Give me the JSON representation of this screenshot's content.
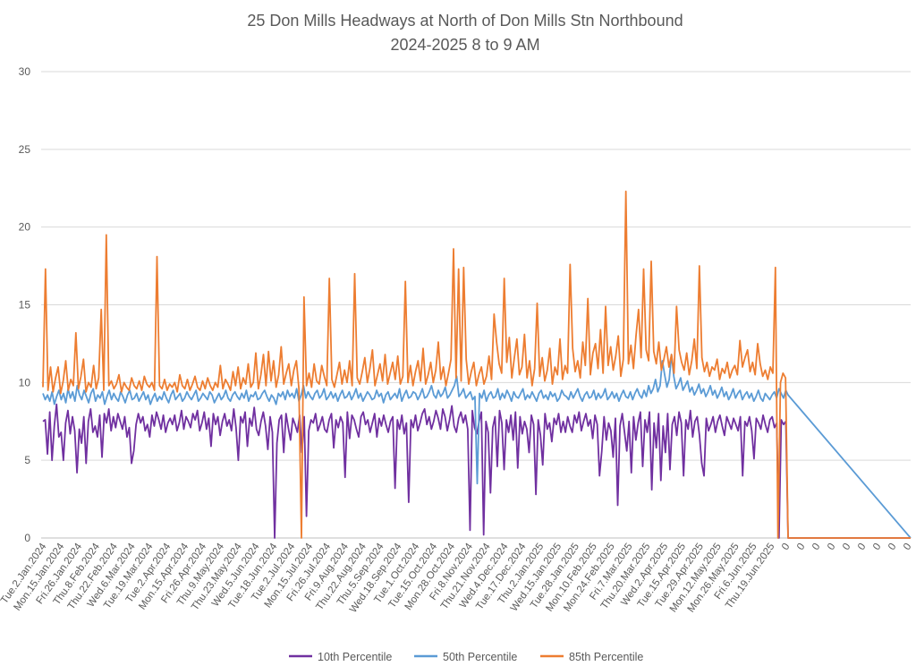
{
  "chart_data": {
    "type": "line",
    "title": "25 Don Mills Headways at North of Don Mills Stn Northbound",
    "subtitle": "2024-2025 8 to 9 AM",
    "xlabel": "",
    "ylabel": "",
    "ylim": [
      0,
      30
    ],
    "yticks": [
      0,
      5,
      10,
      15,
      20,
      25,
      30
    ],
    "grid": true,
    "legend_position": "bottom",
    "x_tick_labels": [
      "Tue.2.Jan.2024",
      "Mon.15.Jan.2024",
      "Fri.26.Jan.2024",
      "Thu.8.Feb.2024",
      "Thu.22.Feb.2024",
      "Wed.6.Mar.2024",
      "Tue.19.Mar.2024",
      "Tue.2.Apr.2024",
      "Mon.15.Apr.2024",
      "Fri.26.Apr.2024",
      "Thu.9.May.2024",
      "Thu.23.May.2024",
      "Wed.5.Jun.2024",
      "Tue.18.Jun.2024",
      "Tue.2.Jul.2024",
      "Mon.15.Jul.2024",
      "Fri.26.Jul.2024",
      "Fri.9.Aug.2024",
      "Thu.22.Aug.2024",
      "Thu.5.Sep.2024",
      "Wed.18.Sep.2024",
      "Tue.1.Oct.2024",
      "Tue.15.Oct.2024",
      "Mon.28.Oct.2024",
      "Fri.8.Nov.2024",
      "Thu.21.Nov.2024",
      "Wed.4.Dec.2024",
      "Tue.17.Dec.2024",
      "Thu.2.Jan.2025",
      "Wed.15.Jan.2025",
      "Tue.28.Jan.2025",
      "Mon.10.Feb.2025",
      "Mon.24.Feb.2025",
      "Fri.7.Mar.2025",
      "Thu.20.Mar.2025",
      "Wed.2.Apr.2025",
      "Tue.15.Apr.2025",
      "Tue.29.Apr.2025",
      "Mon.12.May.2025",
      "Mon.26.May.2025",
      "Fri.6.Jun.2025",
      "Thu.19.Jun.2025",
      "0",
      "0",
      "0",
      "0",
      "0",
      "0",
      "0",
      "0",
      "0"
    ],
    "series": [
      {
        "name": "10th Percentile",
        "color": "#7030A0",
        "values": [
          7.5,
          7.6,
          5.4,
          8.1,
          5.0,
          7.2,
          8.6,
          6.5,
          6.8,
          5.0,
          7.4,
          8.2,
          6.7,
          7.8,
          6.9,
          4.2,
          7.0,
          6.1,
          7.8,
          4.8,
          7.5,
          8.3,
          6.8,
          7.2,
          6.5,
          7.9,
          5.2,
          8.0,
          7.4,
          8.3,
          6.9,
          7.8,
          7.1,
          8.0,
          7.5,
          7.0,
          7.8,
          6.5,
          7.1,
          4.8,
          5.6,
          7.3,
          8.0,
          7.4,
          7.8,
          6.9,
          7.3,
          6.5,
          7.9,
          7.2,
          8.1,
          7.6,
          7.0,
          7.9,
          6.8,
          7.4,
          7.7,
          7.3,
          7.9,
          6.9,
          7.4,
          8.2,
          7.0,
          7.8,
          7.5,
          7.1,
          8.0,
          7.6,
          8.2,
          6.9,
          7.4,
          8.1,
          7.0,
          7.7,
          5.9,
          8.0,
          7.3,
          7.8,
          6.6,
          7.5,
          8.0,
          7.2,
          7.6,
          6.9,
          8.3,
          7.1,
          5.0,
          7.8,
          7.4,
          8.1,
          5.9,
          7.7,
          7.2,
          8.4,
          7.0,
          6.6,
          7.5,
          8.1,
          7.2,
          5.7,
          7.8,
          6.8,
          0.0,
          6.1,
          7.6,
          7.9,
          5.5,
          8.0,
          7.1,
          6.3,
          7.7,
          7.3,
          6.8,
          7.9,
          5.5,
          7.8,
          1.4,
          6.9,
          7.6,
          7.4,
          8.0,
          6.9,
          7.3,
          7.8,
          7.0,
          6.8,
          7.6,
          8.0,
          5.8,
          7.6,
          7.1,
          7.8,
          7.4,
          3.9,
          8.1,
          6.4,
          7.9,
          7.6,
          7.0,
          6.5,
          7.8,
          8.1,
          7.3,
          7.6,
          6.8,
          7.4,
          8.0,
          6.5,
          7.7,
          7.2,
          7.9,
          7.3,
          6.8,
          7.5,
          7.8,
          3.2,
          7.6,
          7.0,
          7.9,
          6.7,
          7.4,
          2.3,
          7.6,
          7.1,
          7.9,
          6.9,
          7.4,
          8.0,
          8.3,
          7.3,
          7.8,
          7.0,
          7.5,
          8.2,
          7.7,
          7.0,
          8.3,
          7.8,
          6.9,
          7.6,
          8.5,
          7.2,
          6.8,
          7.7,
          8.1,
          7.4,
          7.9,
          7.0,
          0.5,
          8.2,
          7.1,
          6.7,
          7.5,
          8.1,
          0.2,
          7.5,
          6.8,
          2.9,
          7.1,
          7.8,
          4.6,
          8.2,
          7.4,
          4.4,
          7.6,
          6.8,
          7.9,
          6.3,
          8.1,
          4.5,
          7.8,
          6.7,
          7.5,
          7.0,
          5.5,
          7.9,
          7.3,
          2.8,
          7.6,
          6.6,
          4.7,
          8.0,
          7.0,
          7.4,
          6.2,
          7.7,
          7.3,
          8.0,
          6.8,
          7.5,
          6.8,
          7.8,
          7.2,
          6.8,
          7.9,
          7.4,
          8.1,
          6.9,
          7.5,
          8.0,
          7.2,
          7.6,
          6.4,
          7.9,
          7.3,
          4.0,
          5.6,
          7.8,
          6.3,
          7.4,
          6.9,
          5.2,
          7.7,
          2.1,
          7.2,
          8.0,
          6.8,
          5.6,
          7.5,
          4.2,
          7.8,
          6.3,
          7.4,
          8.1,
          4.6,
          7.6,
          6.8,
          8.1,
          3.1,
          7.4,
          5.8,
          8.0,
          3.7,
          7.2,
          5.5,
          8.0,
          4.4,
          7.3,
          7.8,
          6.6,
          8.1,
          7.4,
          4.0,
          7.6,
          7.0,
          8.2,
          6.5,
          7.5,
          7.8,
          6.6,
          4.8,
          4.0,
          7.7,
          6.9,
          7.3,
          7.8,
          6.8,
          7.5,
          7.9,
          7.2,
          6.6,
          7.8,
          7.4,
          7.0,
          7.7,
          7.3,
          6.9,
          7.8,
          4.0,
          7.5,
          7.2,
          7.8,
          6.9,
          5.1,
          7.7,
          7.4,
          7.0,
          7.9,
          7.3,
          6.8,
          7.6,
          7.8,
          7.1,
          7.4,
          0.0,
          7.6,
          7.3,
          7.5,
          0.0
        ]
      },
      {
        "name": "50th Percentile",
        "color": "#5B9BD5",
        "values": [
          9.3,
          8.9,
          9.2,
          8.8,
          9.4,
          8.6,
          9.1,
          9.5,
          8.9,
          9.3,
          8.7,
          9.6,
          9.0,
          9.4,
          8.8,
          9.8,
          9.2,
          8.9,
          9.5,
          9.1,
          8.7,
          9.3,
          9.6,
          8.8,
          9.2,
          9.0,
          9.4,
          8.6,
          9.1,
          9.5,
          8.9,
          9.3,
          9.0,
          8.8,
          9.4,
          9.1,
          8.7,
          9.2,
          9.5,
          8.9,
          9.0,
          9.3,
          8.8,
          9.1,
          9.4,
          8.9,
          9.2,
          8.6,
          9.0,
          9.3,
          8.8,
          9.1,
          8.9,
          9.4,
          9.0,
          8.7,
          9.2,
          9.5,
          8.9,
          9.1,
          9.3,
          8.8,
          9.0,
          9.4,
          9.1,
          8.9,
          9.2,
          9.5,
          8.8,
          9.0,
          9.3,
          9.1,
          8.9,
          9.4,
          9.2,
          8.7,
          9.0,
          9.3,
          8.9,
          9.1,
          9.5,
          9.0,
          8.8,
          9.2,
          9.4,
          9.1,
          8.9,
          9.3,
          9.0,
          9.5,
          8.8,
          9.2,
          9.1,
          9.4,
          8.9,
          9.0,
          9.3,
          9.5,
          9.1,
          8.8,
          9.2,
          9.0,
          8.6,
          9.3,
          9.1,
          9.4,
          8.9,
          9.5,
          9.1,
          9.3,
          9.0,
          9.6,
          8.8,
          9.2,
          9.8,
          9.0,
          9.4,
          9.1,
          8.9,
          9.3,
          9.5,
          9.0,
          9.2,
          9.6,
          8.9,
          9.1,
          9.4,
          9.0,
          9.3,
          8.8,
          9.2,
          9.5,
          9.0,
          9.1,
          9.4,
          8.9,
          9.2,
          9.6,
          9.0,
          9.3,
          8.8,
          9.1,
          9.4,
          9.2,
          8.9,
          9.0,
          9.5,
          9.1,
          9.3,
          8.7,
          9.2,
          9.4,
          8.9,
          9.1,
          9.3,
          9.0,
          9.6,
          8.8,
          9.2,
          9.5,
          9.0,
          9.1,
          9.4,
          9.3,
          8.9,
          9.2,
          9.6,
          9.0,
          9.1,
          9.4,
          9.8,
          9.2,
          9.0,
          9.5,
          9.1,
          9.3,
          9.7,
          9.0,
          9.2,
          9.5,
          9.8,
          10.4,
          9.1,
          9.3,
          9.6,
          9.0,
          9.2,
          9.4,
          8.9,
          9.1,
          3.5,
          9.3,
          9.0,
          9.5,
          8.8,
          9.2,
          9.4,
          9.0,
          9.1,
          9.6,
          8.9,
          9.3,
          9.0,
          9.5,
          9.2,
          8.8,
          9.4,
          9.1,
          9.0,
          9.3,
          9.6,
          8.9,
          9.2,
          9.0,
          9.4,
          9.1,
          8.8,
          9.3,
          9.5,
          9.0,
          9.2,
          8.9,
          9.4,
          9.1,
          9.3,
          8.8,
          9.0,
          9.5,
          9.2,
          9.1,
          8.9,
          9.4,
          9.0,
          9.3,
          9.6,
          9.1,
          8.8,
          9.2,
          9.4,
          9.0,
          9.1,
          9.5,
          8.9,
          9.3,
          9.0,
          9.2,
          9.6,
          8.9,
          9.1,
          9.4,
          9.0,
          9.3,
          8.8,
          9.2,
          9.5,
          9.1,
          9.0,
          9.4,
          8.9,
          9.3,
          9.6,
          9.2,
          9.0,
          9.5,
          9.1,
          9.8,
          9.3,
          9.6,
          10.2,
          9.4,
          9.8,
          11.4,
          10.5,
          9.7,
          10.2,
          11.8,
          10.4,
          9.6,
          9.9,
          10.3,
          9.5,
          9.8,
          10.1,
          9.4,
          9.7,
          9.2,
          9.5,
          9.9,
          9.3,
          9.6,
          9.1,
          9.4,
          9.8,
          9.2,
          9.5,
          9.0,
          9.3,
          9.7,
          9.1,
          9.4,
          8.9,
          9.2,
          9.6,
          9.0,
          9.3,
          9.5,
          8.9,
          9.2,
          9.4,
          9.0,
          9.3,
          8.8,
          9.1,
          9.5,
          9.0,
          8.8,
          9.3,
          9.1,
          8.9,
          9.2,
          9.4,
          9.0,
          9.6,
          9.3,
          9.0,
          9.5,
          9.2
        ]
      },
      {
        "name": "85th Percentile",
        "color": "#ED7D31",
        "values": [
          9.7,
          17.3,
          9.5,
          11.0,
          9.4,
          10.3,
          11.0,
          9.3,
          10.1,
          11.4,
          9.5,
          10.2,
          9.8,
          13.2,
          9.6,
          10.4,
          11.5,
          9.4,
          10.0,
          9.7,
          11.1,
          9.6,
          10.3,
          14.7,
          9.5,
          19.5,
          9.8,
          10.1,
          9.6,
          9.9,
          10.5,
          9.4,
          10.0,
          9.7,
          9.5,
          10.3,
          9.8,
          9.6,
          10.1,
          9.5,
          10.4,
          9.9,
          9.7,
          10.0,
          9.5,
          18.1,
          9.8,
          9.6,
          10.2,
          9.5,
          9.9,
          9.7,
          10.0,
          9.4,
          10.5,
          9.8,
          9.6,
          10.2,
          9.5,
          9.9,
          10.4,
          9.7,
          9.5,
          10.1,
          9.6,
          10.3,
          9.8,
          9.5,
          10.0,
          9.7,
          11.1,
          9.6,
          10.2,
          9.9,
          9.5,
          10.7,
          9.8,
          11.0,
          9.6,
          10.3,
          9.9,
          11.2,
          9.7,
          10.0,
          11.9,
          9.6,
          10.5,
          11.8,
          9.8,
          12.0,
          10.1,
          11.4,
          9.7,
          10.5,
          12.3,
          9.9,
          10.6,
          11.2,
          9.8,
          10.8,
          11.4,
          9.6,
          0.0,
          15.5,
          9.8,
          10.6,
          9.7,
          11.2,
          10.1,
          9.9,
          11.1,
          10.4,
          9.8,
          16.7,
          10.2,
          9.7,
          10.5,
          11.3,
          9.9,
          10.8,
          10.0,
          11.4,
          9.8,
          17.0,
          10.3,
          9.9,
          10.7,
          11.6,
          10.0,
          10.9,
          12.1,
          9.8,
          10.5,
          11.2,
          10.1,
          11.8,
          9.9,
          10.6,
          11.3,
          10.2,
          11.7,
          9.9,
          10.4,
          16.5,
          10.0,
          11.1,
          9.8,
          10.7,
          11.4,
          10.1,
          12.2,
          9.9,
          10.5,
          11.3,
          10.0,
          10.8,
          12.6,
          10.2,
          11.0,
          9.8,
          10.6,
          11.5,
          18.6,
          10.3,
          17.3,
          10.1,
          17.4,
          11.5,
          9.9,
          10.7,
          11.3,
          9.8,
          10.5,
          11.0,
          9.9,
          10.4,
          11.7,
          10.2,
          14.4,
          12.6,
          11.2,
          10.6,
          16.7,
          11.3,
          12.9,
          10.3,
          11.6,
          12.8,
          10.5,
          11.0,
          13.1,
          10.3,
          11.4,
          9.8,
          10.9,
          15.1,
          10.4,
          11.6,
          10.1,
          10.8,
          12.2,
          9.9,
          11.0,
          10.5,
          12.8,
          10.2,
          11.1,
          10.6,
          17.6,
          12.2,
          10.7,
          11.4,
          10.3,
          12.6,
          11.1,
          15.4,
          10.5,
          11.9,
          12.5,
          10.9,
          13.4,
          10.6,
          14.9,
          11.1,
          12.3,
          10.8,
          11.7,
          13.0,
          10.4,
          11.5,
          22.3,
          11.2,
          12.4,
          10.9,
          13.0,
          14.7,
          11.6,
          17.3,
          12.1,
          11.4,
          17.8,
          12.0,
          11.2,
          12.6,
          10.8,
          11.5,
          12.3,
          11.0,
          11.8,
          10.6,
          14.9,
          12.1,
          11.3,
          10.8,
          11.9,
          10.5,
          11.4,
          12.8,
          10.9,
          17.5,
          11.6,
          10.7,
          11.3,
          10.4,
          11.0,
          10.8,
          11.5,
          10.2,
          10.9,
          10.6,
          11.3,
          10.3,
          10.8,
          11.1,
          10.5,
          12.7,
          11.0,
          11.6,
          12.1,
          10.7,
          11.3,
          10.5,
          12.5,
          11.2,
          10.4,
          10.8,
          10.2,
          11.0,
          10.6,
          17.4,
          0.0,
          10.0,
          10.6,
          10.3,
          0.0
        ]
      }
    ]
  }
}
